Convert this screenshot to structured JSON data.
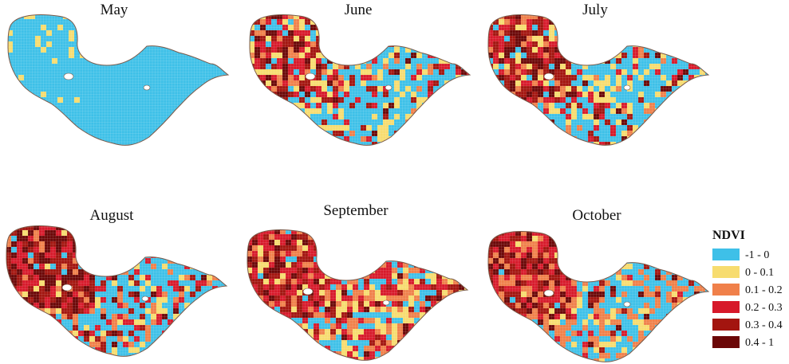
{
  "maps": [
    {
      "id": "may",
      "title": "May",
      "mix": [
        1,
        0,
        0,
        0,
        0,
        0
      ],
      "hot_west": [
        0.9,
        0.1,
        0,
        0,
        0,
        0
      ]
    },
    {
      "id": "june",
      "title": "June",
      "mix": [
        0.55,
        0.2,
        0.05,
        0.1,
        0.07,
        0.03
      ],
      "hot_west": [
        0.15,
        0.15,
        0.1,
        0.2,
        0.25,
        0.15
      ]
    },
    {
      "id": "july",
      "title": "July",
      "mix": [
        0.55,
        0.18,
        0.07,
        0.1,
        0.06,
        0.04
      ],
      "hot_west": [
        0.1,
        0.15,
        0.1,
        0.2,
        0.25,
        0.2
      ]
    },
    {
      "id": "august",
      "title": "August",
      "mix": [
        0.55,
        0.12,
        0.1,
        0.12,
        0.07,
        0.04
      ],
      "hot_west": [
        0.03,
        0.05,
        0.07,
        0.2,
        0.3,
        0.35
      ]
    },
    {
      "id": "september",
      "title": "September",
      "mix": [
        0.25,
        0.2,
        0.2,
        0.2,
        0.1,
        0.05
      ],
      "hot_west": [
        0.05,
        0.1,
        0.15,
        0.3,
        0.25,
        0.15
      ]
    },
    {
      "id": "october",
      "title": "October",
      "mix": [
        0.45,
        0.12,
        0.3,
        0.05,
        0.05,
        0.03
      ],
      "hot_west": [
        0.02,
        0.05,
        0.2,
        0.3,
        0.25,
        0.18
      ]
    }
  ],
  "legend": {
    "title": "NDVI",
    "classes": [
      {
        "label": "-1 - 0",
        "color": "#3ec0e8"
      },
      {
        "label": "0 - 0.1",
        "color": "#f7dc6f"
      },
      {
        "label": "0.1 - 0.2",
        "color": "#f0804a"
      },
      {
        "label": "0.2 - 0.3",
        "color": "#d7192a"
      },
      {
        "label": "0.3 - 0.4",
        "color": "#a3150f"
      },
      {
        "label": "0.4 - 1",
        "color": "#6b0707"
      }
    ]
  }
}
